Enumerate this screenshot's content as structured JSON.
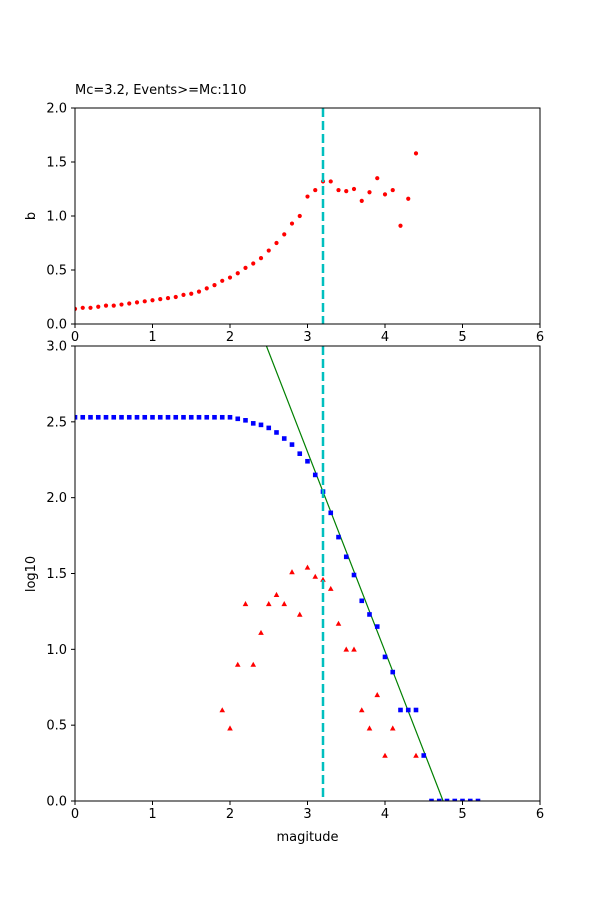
{
  "chart_data": [
    {
      "type": "scatter",
      "title": "Mc=3.2, Events>=Mc:110",
      "xlabel": "",
      "ylabel": "b",
      "xlim": [
        0,
        6
      ],
      "ylim": [
        0,
        2.0
      ],
      "xticks": [
        "0",
        "1",
        "2",
        "3",
        "4",
        "5",
        "6"
      ],
      "yticks": [
        "0.0",
        "0.5",
        "1.0",
        "1.5",
        "2.0"
      ],
      "grid": false,
      "vline": {
        "x": 3.2,
        "color": "#00bfbf",
        "style": "dashed"
      },
      "series": [
        {
          "color": "#ff0000",
          "marker": "circle",
          "points": [
            [
              0.0,
              0.14
            ],
            [
              0.1,
              0.15
            ],
            [
              0.2,
              0.15
            ],
            [
              0.3,
              0.16
            ],
            [
              0.4,
              0.17
            ],
            [
              0.5,
              0.17
            ],
            [
              0.6,
              0.18
            ],
            [
              0.7,
              0.19
            ],
            [
              0.8,
              0.2
            ],
            [
              0.9,
              0.21
            ],
            [
              1.0,
              0.22
            ],
            [
              1.1,
              0.23
            ],
            [
              1.2,
              0.24
            ],
            [
              1.3,
              0.25
            ],
            [
              1.4,
              0.27
            ],
            [
              1.5,
              0.28
            ],
            [
              1.6,
              0.3
            ],
            [
              1.7,
              0.33
            ],
            [
              1.8,
              0.36
            ],
            [
              1.9,
              0.4
            ],
            [
              2.0,
              0.43
            ],
            [
              2.1,
              0.47
            ],
            [
              2.2,
              0.52
            ],
            [
              2.3,
              0.56
            ],
            [
              2.4,
              0.61
            ],
            [
              2.5,
              0.68
            ],
            [
              2.6,
              0.75
            ],
            [
              2.7,
              0.83
            ],
            [
              2.8,
              0.93
            ],
            [
              2.9,
              1.0
            ],
            [
              3.0,
              1.18
            ],
            [
              3.1,
              1.24
            ],
            [
              3.2,
              1.32
            ],
            [
              3.3,
              1.32
            ],
            [
              3.4,
              1.24
            ],
            [
              3.5,
              1.23
            ],
            [
              3.6,
              1.25
            ],
            [
              3.7,
              1.14
            ],
            [
              3.8,
              1.22
            ],
            [
              3.9,
              1.35
            ],
            [
              4.0,
              1.2
            ],
            [
              4.1,
              1.24
            ],
            [
              4.2,
              0.91
            ],
            [
              4.3,
              1.16
            ],
            [
              4.4,
              1.58
            ]
          ]
        }
      ]
    },
    {
      "type": "scatter",
      "title": "",
      "xlabel": "magitude",
      "ylabel": "log10",
      "xlim": [
        0,
        6
      ],
      "ylim": [
        0,
        3.0
      ],
      "xticks": [
        "0",
        "1",
        "2",
        "3",
        "4",
        "5",
        "6"
      ],
      "yticks": [
        "0.0",
        "0.5",
        "1.0",
        "1.5",
        "2.0",
        "2.5",
        "3.0"
      ],
      "grid": false,
      "vline": {
        "x": 3.2,
        "color": "#00bfbf",
        "style": "dashed"
      },
      "fit_line": {
        "color": "#008000",
        "points": [
          [
            2.47,
            3.0
          ],
          [
            4.75,
            0.0
          ]
        ]
      },
      "series": [
        {
          "color": "#0000ff",
          "marker": "square",
          "points": [
            [
              0.0,
              2.53
            ],
            [
              0.1,
              2.53
            ],
            [
              0.2,
              2.53
            ],
            [
              0.3,
              2.53
            ],
            [
              0.4,
              2.53
            ],
            [
              0.5,
              2.53
            ],
            [
              0.6,
              2.53
            ],
            [
              0.7,
              2.53
            ],
            [
              0.8,
              2.53
            ],
            [
              0.9,
              2.53
            ],
            [
              1.0,
              2.53
            ],
            [
              1.1,
              2.53
            ],
            [
              1.2,
              2.53
            ],
            [
              1.3,
              2.53
            ],
            [
              1.4,
              2.53
            ],
            [
              1.5,
              2.53
            ],
            [
              1.6,
              2.53
            ],
            [
              1.7,
              2.53
            ],
            [
              1.8,
              2.53
            ],
            [
              1.9,
              2.53
            ],
            [
              2.0,
              2.53
            ],
            [
              2.1,
              2.52
            ],
            [
              2.2,
              2.51
            ],
            [
              2.3,
              2.49
            ],
            [
              2.4,
              2.48
            ],
            [
              2.5,
              2.46
            ],
            [
              2.6,
              2.43
            ],
            [
              2.7,
              2.39
            ],
            [
              2.8,
              2.35
            ],
            [
              2.9,
              2.29
            ],
            [
              3.0,
              2.24
            ],
            [
              3.1,
              2.15
            ],
            [
              3.2,
              2.04
            ],
            [
              3.3,
              1.9
            ],
            [
              3.4,
              1.74
            ],
            [
              3.5,
              1.61
            ],
            [
              3.6,
              1.49
            ],
            [
              3.7,
              1.32
            ],
            [
              3.8,
              1.23
            ],
            [
              3.9,
              1.15
            ],
            [
              4.0,
              0.95
            ],
            [
              4.1,
              0.85
            ],
            [
              4.2,
              0.6
            ],
            [
              4.3,
              0.6
            ],
            [
              4.4,
              0.6
            ],
            [
              4.5,
              0.3
            ],
            [
              4.6,
              0.0
            ],
            [
              4.7,
              0.0
            ],
            [
              4.8,
              0.0
            ],
            [
              4.9,
              0.0
            ],
            [
              5.0,
              0.0
            ],
            [
              5.1,
              0.0
            ],
            [
              5.2,
              0.0
            ]
          ]
        },
        {
          "color": "#ff0000",
          "marker": "triangle",
          "points": [
            [
              1.9,
              0.6
            ],
            [
              2.0,
              0.48
            ],
            [
              2.1,
              0.9
            ],
            [
              2.2,
              1.3
            ],
            [
              2.3,
              0.9
            ],
            [
              2.4,
              1.11
            ],
            [
              2.5,
              1.3
            ],
            [
              2.6,
              1.36
            ],
            [
              2.7,
              1.3
            ],
            [
              2.8,
              1.51
            ],
            [
              2.9,
              1.23
            ],
            [
              3.0,
              1.54
            ],
            [
              3.1,
              1.48
            ],
            [
              3.2,
              1.46
            ],
            [
              3.3,
              1.4
            ],
            [
              3.4,
              1.17
            ],
            [
              3.5,
              1.0
            ],
            [
              3.6,
              1.0
            ],
            [
              3.7,
              0.6
            ],
            [
              3.8,
              0.48
            ],
            [
              3.9,
              0.7
            ],
            [
              4.0,
              0.3
            ],
            [
              4.1,
              0.48
            ],
            [
              4.4,
              0.3
            ]
          ]
        }
      ]
    }
  ]
}
